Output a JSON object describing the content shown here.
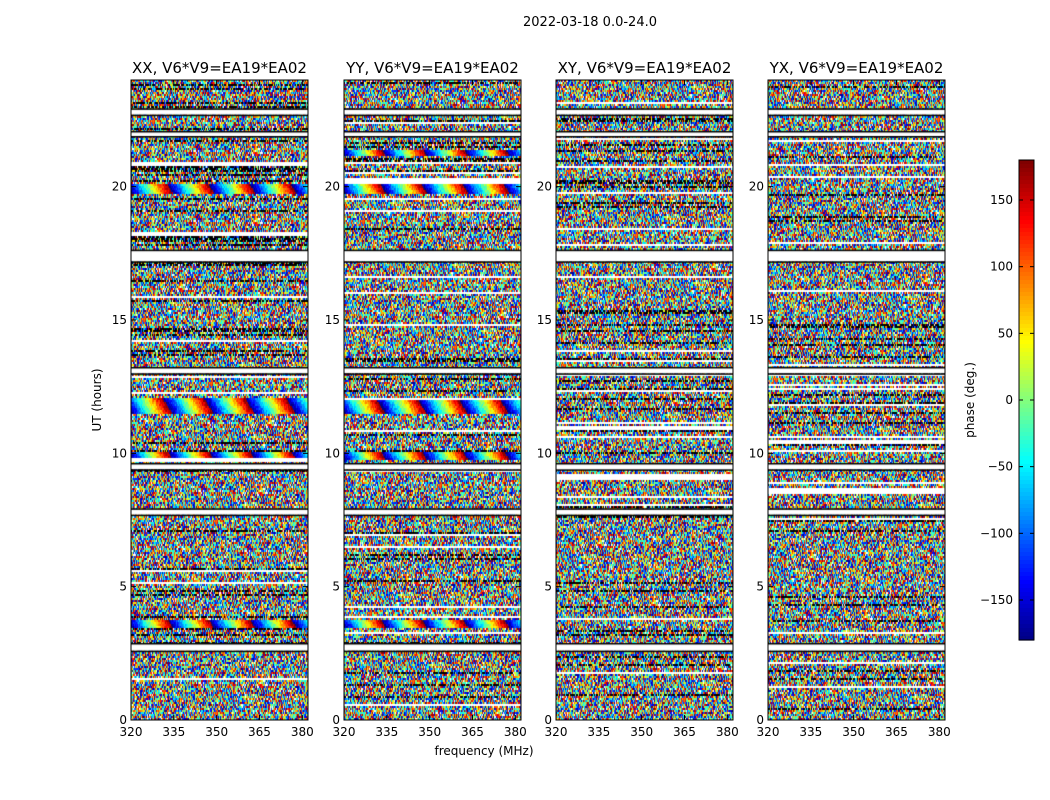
{
  "chart_data": {
    "type": "heatmap",
    "suptitle": "2022-03-18 0.0-24.0",
    "panels": [
      {
        "title": "XX, V6*V9=EA19*EA02",
        "correlation": "XX"
      },
      {
        "title": "YY, V6*V9=EA19*EA02",
        "correlation": "YY"
      },
      {
        "title": "XY, V6*V9=EA19*EA02",
        "correlation": "XY"
      },
      {
        "title": "YX, V6*V9=EA19*EA02",
        "correlation": "YX"
      }
    ],
    "xlabel": "frequency (MHz)",
    "ylabel": "UT (hours)",
    "xlim": [
      320,
      382
    ],
    "ylim": [
      0,
      24
    ],
    "xticks": [
      320,
      335,
      350,
      365,
      380
    ],
    "yticks": [
      0,
      5,
      10,
      15,
      20
    ],
    "colorbar": {
      "label": "phase (deg.)",
      "range": [
        -180,
        180
      ],
      "ticks": [
        -150,
        -100,
        -50,
        0,
        50,
        100,
        150
      ],
      "tick_labels": [
        "−150",
        "−100",
        "−50",
        "0",
        "50",
        "100",
        "150"
      ],
      "colormap": "jet"
    },
    "flagged_ut_bands": [
      [
        2.6,
        2.85
      ],
      [
        7.7,
        7.9
      ],
      [
        9.4,
        9.6
      ],
      [
        13.0,
        13.2
      ],
      [
        17.2,
        17.6
      ],
      [
        22.7,
        22.9
      ],
      [
        21.9,
        22.05
      ]
    ],
    "coherent_fringe_bands": [
      {
        "panels": [
          "XX",
          "YY"
        ],
        "ut": [
          11.5,
          12.1
        ]
      },
      {
        "panels": [
          "XX",
          "YY"
        ],
        "ut": [
          9.8,
          10.1
        ]
      },
      {
        "panels": [
          "XX",
          "YY"
        ],
        "ut": [
          19.8,
          20.1
        ]
      },
      {
        "panels": [
          "XX",
          "YY"
        ],
        "ut": [
          3.5,
          3.8
        ]
      },
      {
        "panels": [
          "YY"
        ],
        "ut": [
          21.2,
          21.4
        ]
      }
    ]
  }
}
